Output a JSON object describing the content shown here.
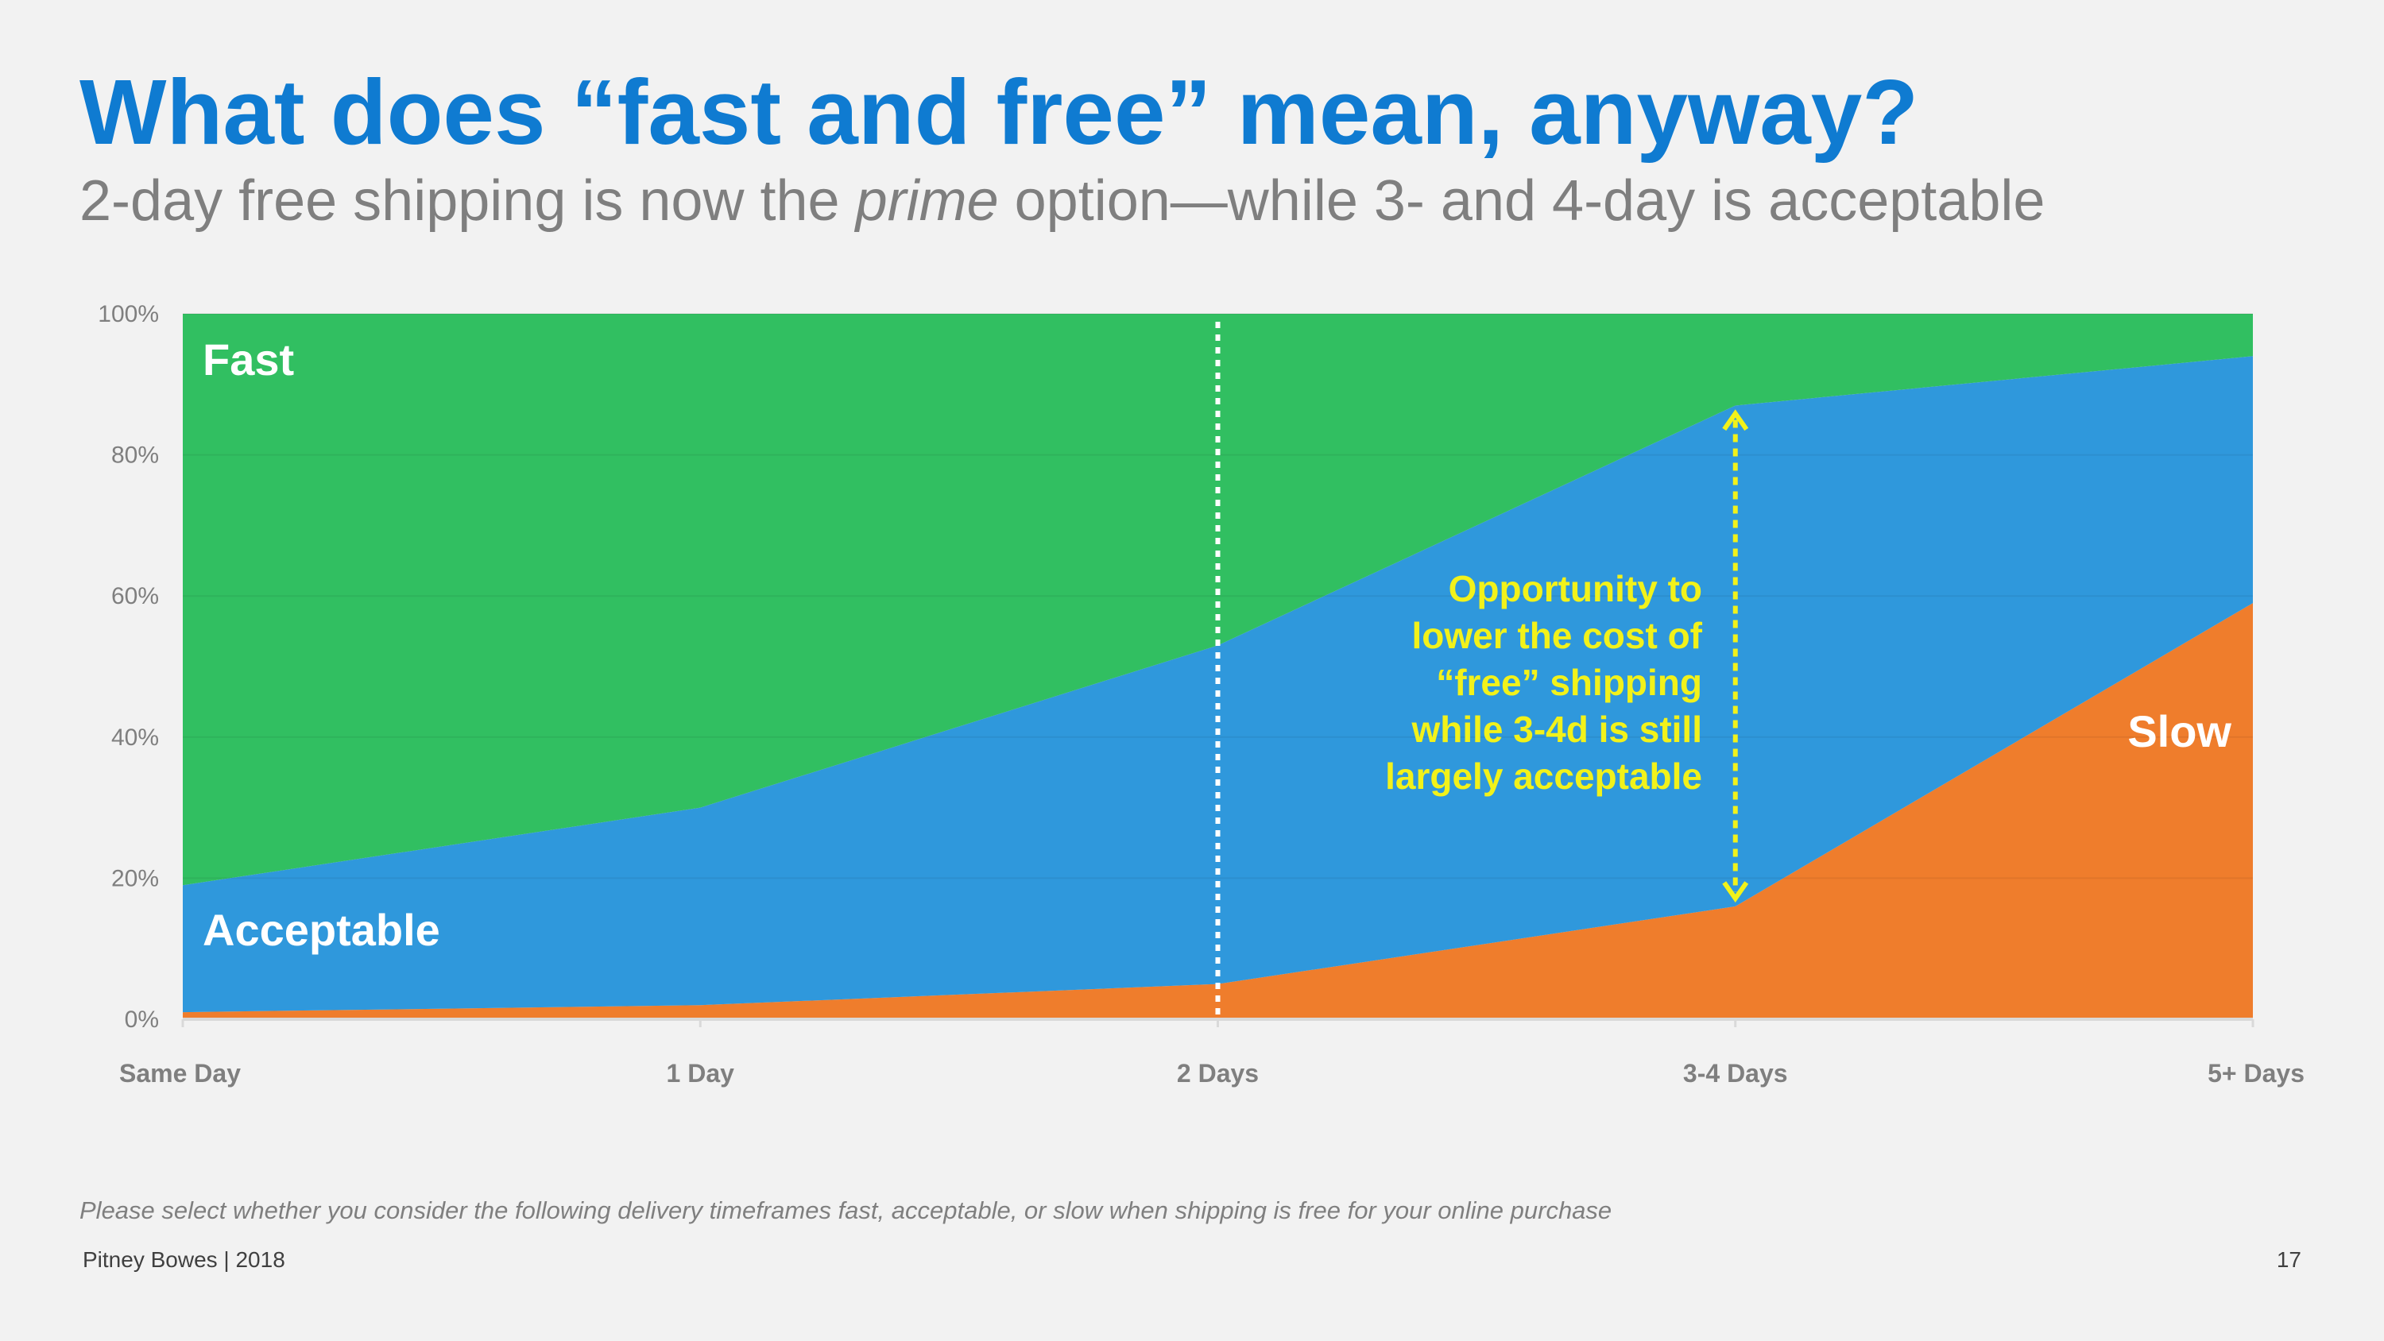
{
  "slide": {
    "title": "What does “fast and free” mean, anyway?",
    "subtitle_before": "2-day free shipping is now the ",
    "subtitle_emphasis": "prime",
    "subtitle_after": " option—while 3- and 4-day is acceptable",
    "footnote": "Please select whether you consider the following delivery timeframes fast, acceptable, or slow when shipping is free for your online purchase",
    "source": "Pitney Bowes | 2018",
    "page_number": "17"
  },
  "chart_data": {
    "type": "area",
    "stacked": true,
    "categories": [
      "Same Day",
      "1 Day",
      "2 Days",
      "3-4 Days",
      "5+ Days"
    ],
    "series": [
      {
        "name": "Slow",
        "values": [
          1,
          2,
          5,
          16,
          59
        ],
        "color": "#ef7d2c"
      },
      {
        "name": "Acceptable",
        "values": [
          18,
          28,
          48,
          71,
          35
        ],
        "color": "#2f98dc"
      },
      {
        "name": "Fast",
        "values": [
          81,
          70,
          47,
          13,
          6
        ],
        "color": "#31bf61"
      }
    ],
    "yticks": [
      "0%",
      "20%",
      "40%",
      "60%",
      "80%",
      "100%"
    ],
    "ylim": [
      0,
      100
    ],
    "annotation": {
      "lines": [
        "Opportunity to",
        "lower the cost of",
        "“free” shipping",
        "while 3-4d is still",
        "largely acceptable"
      ],
      "color": "#f2f21a"
    },
    "reference_line_category": "2 Days"
  }
}
